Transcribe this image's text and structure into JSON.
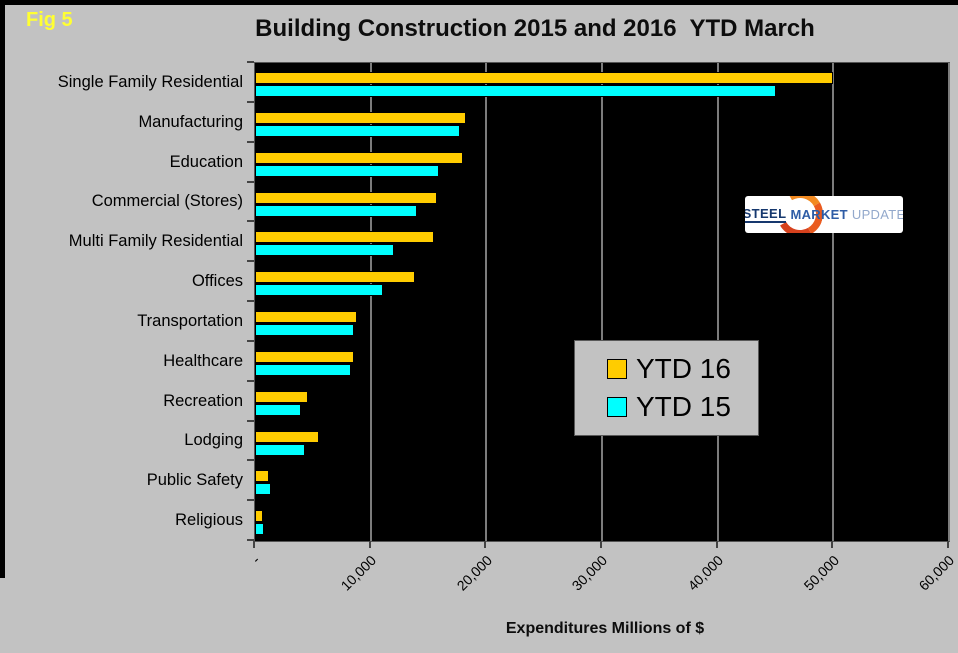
{
  "fig_label": "Fig 5",
  "title": "Building Construction 2015 and 2016  YTD March",
  "x_axis_title": "Expenditures Millions of $",
  "legend": {
    "items": [
      {
        "label": "YTD 16",
        "color": "#FFCC00"
      },
      {
        "label": "YTD 15",
        "color": "#00FFFF"
      }
    ]
  },
  "logo": {
    "text": [
      "STEEL",
      "MARKET",
      "UPDATE"
    ]
  },
  "colors": {
    "background": "#C2C2C2",
    "plot_background": "#000000",
    "gridline": "#7C7C7C",
    "fig_label": "#FFFF33",
    "ytd16_bar": "#FFCC00",
    "ytd15_bar": "#00FFFF"
  },
  "chart_data": {
    "type": "bar",
    "orientation": "horizontal",
    "title": "Building Construction 2015 and 2016  YTD March",
    "xlabel": "Expenditures Millions of $",
    "categories": [
      "Single Family Residential",
      "Manufacturing",
      "Education",
      "Commercial (Stores)",
      "Multi Family Residential",
      "Offices",
      "Transportation",
      "Healthcare",
      "Recreation",
      "Lodging",
      "Public Safety",
      "Religious"
    ],
    "series": [
      {
        "name": "YTD 16",
        "color": "#FFCC00",
        "values": [
          50000,
          18200,
          18000,
          15700,
          15500,
          13800,
          8800,
          8600,
          4600,
          5500,
          1200,
          700
        ]
      },
      {
        "name": "YTD 15",
        "color": "#00FFFF",
        "values": [
          45000,
          17700,
          15900,
          14000,
          12000,
          11100,
          8600,
          8300,
          4000,
          4300,
          1400,
          750
        ]
      }
    ],
    "xlim": [
      0,
      60000
    ],
    "xticks": [
      0,
      10000,
      20000,
      30000,
      40000,
      50000,
      60000
    ],
    "xtick_labels": [
      "-",
      "10,000",
      "20,000",
      "30,000",
      "40,000",
      "50,000",
      "60,000"
    ],
    "xtick_label_rotation_deg": 45,
    "grid": "vertical gray gridlines on black plot",
    "legend_position": "overlay center-right"
  }
}
